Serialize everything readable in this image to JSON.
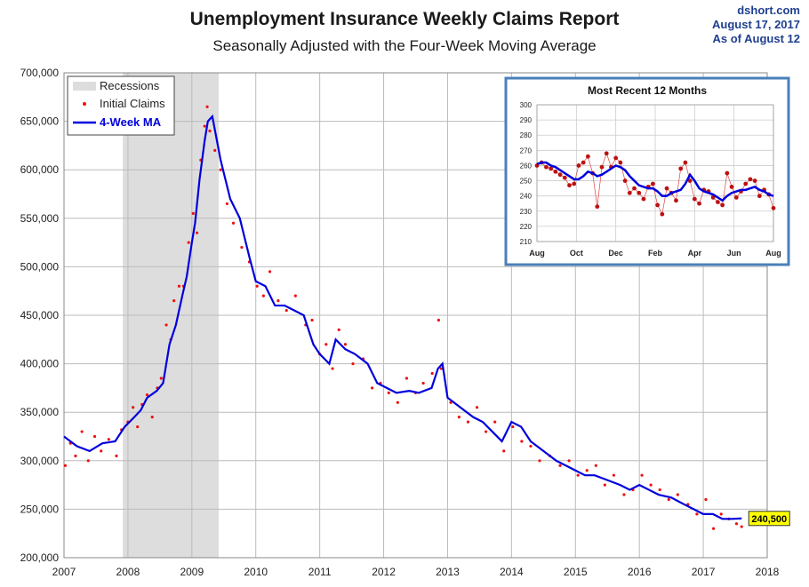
{
  "title": "Unemployment Insurance Weekly Claims Report",
  "subtitle": "Seasonally Adjusted with the Four-Week Moving Average",
  "source": {
    "site": "dshort.com",
    "date": "August 17, 2017",
    "asof": "As of August 12"
  },
  "colors": {
    "recession": "#dddddd",
    "claims": "#ee1111",
    "ma": "#0000dd",
    "grid": "#bbbbbb",
    "inset_border": "#4a80b8",
    "badge": "#ffff00"
  },
  "chart_data": {
    "type": "line",
    "title": "Unemployment Insurance Weekly Claims Report",
    "subtitle": "Seasonally Adjusted with the Four-Week Moving Average",
    "xlabel": "",
    "ylabel": "",
    "xlim": [
      2007,
      2018
    ],
    "ylim": [
      200000,
      700000
    ],
    "x_ticks": [
      "2007",
      "2008",
      "2009",
      "2010",
      "2011",
      "2012",
      "2013",
      "2014",
      "2015",
      "2016",
      "2017",
      "2018"
    ],
    "y_ticks": [
      "200,000",
      "250,000",
      "300,000",
      "350,000",
      "400,000",
      "450,000",
      "500,000",
      "550,000",
      "600,000",
      "650,000",
      "700,000"
    ],
    "grid": true,
    "legend": {
      "position": "top-left",
      "entries": [
        "Recessions",
        "Initial Claims",
        "4-Week MA"
      ]
    },
    "recession": {
      "start": 2007.92,
      "end": 2009.42
    },
    "series": [
      {
        "name": "4-Week MA",
        "kind": "line",
        "x": [
          2007.0,
          2007.2,
          2007.4,
          2007.6,
          2007.8,
          2007.95,
          2008.1,
          2008.2,
          2008.3,
          2008.45,
          2008.55,
          2008.65,
          2008.75,
          2008.85,
          2008.92,
          2009.0,
          2009.05,
          2009.12,
          2009.2,
          2009.25,
          2009.32,
          2009.45,
          2009.6,
          2009.75,
          2009.9,
          2010.0,
          2010.15,
          2010.3,
          2010.45,
          2010.6,
          2010.75,
          2010.9,
          2011.0,
          2011.15,
          2011.25,
          2011.4,
          2011.55,
          2011.75,
          2011.9,
          2012.05,
          2012.2,
          2012.4,
          2012.55,
          2012.75,
          2012.85,
          2012.92,
          2013.0,
          2013.2,
          2013.4,
          2013.55,
          2013.7,
          2013.85,
          2014.0,
          2014.15,
          2014.3,
          2014.5,
          2014.7,
          2014.85,
          2015.0,
          2015.15,
          2015.3,
          2015.5,
          2015.7,
          2015.85,
          2016.0,
          2016.15,
          2016.3,
          2016.5,
          2016.7,
          2016.85,
          2017.0,
          2017.15,
          2017.3,
          2017.45,
          2017.6
        ],
        "y": [
          325000,
          315000,
          310000,
          318000,
          320000,
          335000,
          345000,
          352000,
          365000,
          372000,
          380000,
          420000,
          440000,
          470000,
          490000,
          525000,
          545000,
          590000,
          630000,
          650000,
          655000,
          610000,
          570000,
          550000,
          510000,
          485000,
          480000,
          460000,
          460000,
          455000,
          450000,
          420000,
          410000,
          400000,
          425000,
          415000,
          410000,
          400000,
          380000,
          375000,
          370000,
          372000,
          370000,
          375000,
          395000,
          400000,
          365000,
          355000,
          345000,
          340000,
          330000,
          320000,
          340000,
          335000,
          320000,
          310000,
          300000,
          295000,
          290000,
          285000,
          285000,
          280000,
          275000,
          270000,
          275000,
          270000,
          265000,
          262000,
          255000,
          250000,
          245000,
          245000,
          240000,
          240000,
          240500
        ]
      },
      {
        "name": "Initial Claims",
        "kind": "scatter",
        "x": [
          2007.02,
          2007.1,
          2007.18,
          2007.28,
          2007.38,
          2007.48,
          2007.58,
          2007.7,
          2007.82,
          2007.9,
          2008.0,
          2008.08,
          2008.15,
          2008.22,
          2008.3,
          2008.38,
          2008.46,
          2008.52,
          2008.6,
          2008.67,
          2008.72,
          2008.8,
          2008.87,
          2008.95,
          2009.02,
          2009.08,
          2009.14,
          2009.2,
          2009.24,
          2009.28,
          2009.36,
          2009.45,
          2009.55,
          2009.65,
          2009.78,
          2009.9,
          2010.02,
          2010.12,
          2010.22,
          2010.35,
          2010.48,
          2010.62,
          2010.78,
          2010.88,
          2011.0,
          2011.1,
          2011.2,
          2011.3,
          2011.4,
          2011.52,
          2011.68,
          2011.82,
          2011.95,
          2012.08,
          2012.22,
          2012.36,
          2012.5,
          2012.62,
          2012.76,
          2012.86,
          2012.9,
          2013.05,
          2013.18,
          2013.32,
          2013.46,
          2013.6,
          2013.74,
          2013.88,
          2014.02,
          2014.16,
          2014.3,
          2014.44,
          2014.6,
          2014.76,
          2014.9,
          2015.04,
          2015.18,
          2015.32,
          2015.46,
          2015.6,
          2015.76,
          2015.9,
          2016.04,
          2016.18,
          2016.32,
          2016.46,
          2016.6,
          2016.76,
          2016.9,
          2017.04,
          2017.16,
          2017.28,
          2017.4,
          2017.52,
          2017.6
        ],
        "y": [
          295000,
          318000,
          305000,
          330000,
          300000,
          325000,
          310000,
          322000,
          305000,
          332000,
          340000,
          355000,
          335000,
          358000,
          368000,
          345000,
          375000,
          385000,
          440000,
          425000,
          465000,
          480000,
          480000,
          525000,
          555000,
          535000,
          610000,
          645000,
          665000,
          640000,
          620000,
          600000,
          565000,
          545000,
          520000,
          505000,
          480000,
          470000,
          495000,
          465000,
          455000,
          470000,
          440000,
          445000,
          410000,
          420000,
          395000,
          435000,
          420000,
          400000,
          405000,
          375000,
          380000,
          370000,
          360000,
          385000,
          370000,
          380000,
          390000,
          445000,
          395000,
          360000,
          345000,
          340000,
          355000,
          330000,
          340000,
          310000,
          335000,
          320000,
          315000,
          300000,
          305000,
          295000,
          300000,
          285000,
          290000,
          295000,
          275000,
          285000,
          265000,
          270000,
          285000,
          275000,
          270000,
          260000,
          265000,
          255000,
          245000,
          260000,
          230000,
          245000,
          240000,
          235000,
          232000
        ]
      }
    ],
    "last_value_label": "240,500",
    "inset": {
      "title": "Most Recent 12 Months",
      "ylim": [
        210,
        300
      ],
      "y_ticks": [
        "210",
        "220",
        "230",
        "240",
        "250",
        "260",
        "270",
        "280",
        "290",
        "300"
      ],
      "x_ticks": [
        "Aug",
        "Oct",
        "Dec",
        "Feb",
        "Apr",
        "Jun",
        "Aug"
      ],
      "claims": [
        260,
        262,
        259,
        258,
        256,
        254,
        252,
        247,
        248,
        260,
        262,
        266,
        255,
        233,
        259,
        268,
        259,
        265,
        262,
        250,
        242,
        245,
        242,
        238,
        246,
        248,
        234,
        228,
        245,
        242,
        237,
        258,
        262,
        250,
        238,
        235,
        244,
        243,
        239,
        236,
        234,
        255,
        246,
        239,
        243,
        248,
        251,
        250,
        240,
        244,
        241,
        232
      ],
      "ma": [
        261,
        262,
        262,
        260,
        259,
        257,
        255,
        253,
        251,
        251,
        253,
        256,
        255,
        253,
        254,
        256,
        258,
        260,
        259,
        257,
        253,
        250,
        247,
        246,
        245,
        245,
        243,
        240,
        240,
        242,
        243,
        244,
        248,
        254,
        250,
        245,
        243,
        242,
        241,
        239,
        237,
        240,
        242,
        243,
        244,
        244,
        245,
        246,
        244,
        243,
        241,
        240
      ]
    }
  }
}
